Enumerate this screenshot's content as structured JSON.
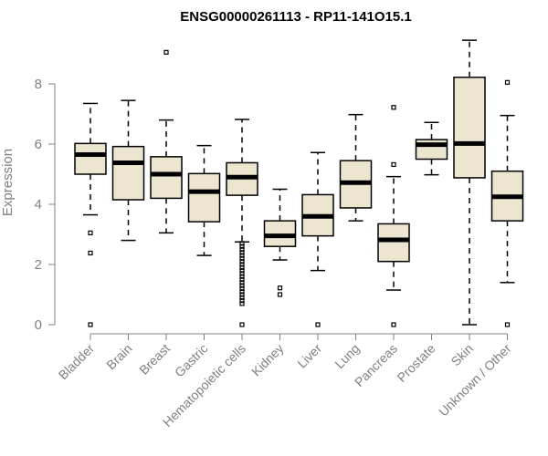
{
  "chart_data": {
    "type": "boxplot",
    "title": "ENSG00000261113 - RP11-141O15.1",
    "xlabel": "",
    "ylabel": "Expression",
    "ylim": [
      0,
      9.5
    ],
    "yticks": [
      0,
      2,
      4,
      6,
      8
    ],
    "grid": false,
    "colors": {
      "box_fill": "#ece5cf",
      "box_stroke": "#000000",
      "axis": "#808080"
    },
    "categories": [
      "Bladder",
      "Brain",
      "Breast",
      "Gastric",
      "Hematopoietic cells",
      "Kidney",
      "Liver",
      "Lung",
      "Pancreas",
      "Prostate",
      "Skin",
      "Unknown / Other"
    ],
    "boxes": [
      {
        "category": "Bladder",
        "whislo": 3.65,
        "q1": 5.0,
        "med": 5.65,
        "q3": 6.02,
        "whishi": 7.35,
        "outliers": [
          0.0,
          2.38,
          3.05
        ]
      },
      {
        "category": "Brain",
        "whislo": 2.8,
        "q1": 4.15,
        "med": 5.38,
        "q3": 5.92,
        "whishi": 7.45,
        "outliers": []
      },
      {
        "category": "Breast",
        "whislo": 3.05,
        "q1": 4.2,
        "med": 5.0,
        "q3": 5.58,
        "whishi": 6.8,
        "outliers": [
          9.05
        ]
      },
      {
        "category": "Gastric",
        "whislo": 2.3,
        "q1": 3.42,
        "med": 4.42,
        "q3": 5.02,
        "whishi": 5.95,
        "outliers": []
      },
      {
        "category": "Hematopoietic cells",
        "whislo": 2.75,
        "q1": 4.3,
        "med": 4.9,
        "q3": 5.38,
        "whishi": 6.82,
        "outliers": [
          0.0,
          0.7,
          0.8,
          0.9,
          1.0,
          1.1,
          1.2,
          1.3,
          1.4,
          1.5,
          1.6,
          1.7,
          1.8,
          1.9,
          2.0,
          2.1,
          2.2,
          2.3,
          2.4,
          2.5,
          2.6,
          2.7
        ]
      },
      {
        "category": "Kidney",
        "whislo": 2.15,
        "q1": 2.6,
        "med": 2.95,
        "q3": 3.45,
        "whishi": 4.5,
        "outliers": [
          1.0,
          1.22
        ]
      },
      {
        "category": "Liver",
        "whislo": 1.8,
        "q1": 2.95,
        "med": 3.6,
        "q3": 4.32,
        "whishi": 5.72,
        "outliers": [
          0.0
        ]
      },
      {
        "category": "Lung",
        "whislo": 3.45,
        "q1": 3.88,
        "med": 4.72,
        "q3": 5.45,
        "whishi": 6.98,
        "outliers": []
      },
      {
        "category": "Pancreas",
        "whislo": 1.15,
        "q1": 2.1,
        "med": 2.82,
        "q3": 3.35,
        "whishi": 4.92,
        "outliers": [
          0.0,
          5.32,
          7.22
        ]
      },
      {
        "category": "Prostate",
        "whislo": 4.98,
        "q1": 5.5,
        "med": 5.98,
        "q3": 6.15,
        "whishi": 6.72,
        "outliers": []
      },
      {
        "category": "Skin",
        "whislo": 0.0,
        "q1": 4.88,
        "med": 6.02,
        "q3": 8.22,
        "whishi": 9.45,
        "outliers": []
      },
      {
        "category": "Unknown / Other",
        "whislo": 1.4,
        "q1": 3.45,
        "med": 4.25,
        "q3": 5.1,
        "whishi": 6.95,
        "outliers": [
          0.0,
          8.05
        ]
      }
    ]
  }
}
